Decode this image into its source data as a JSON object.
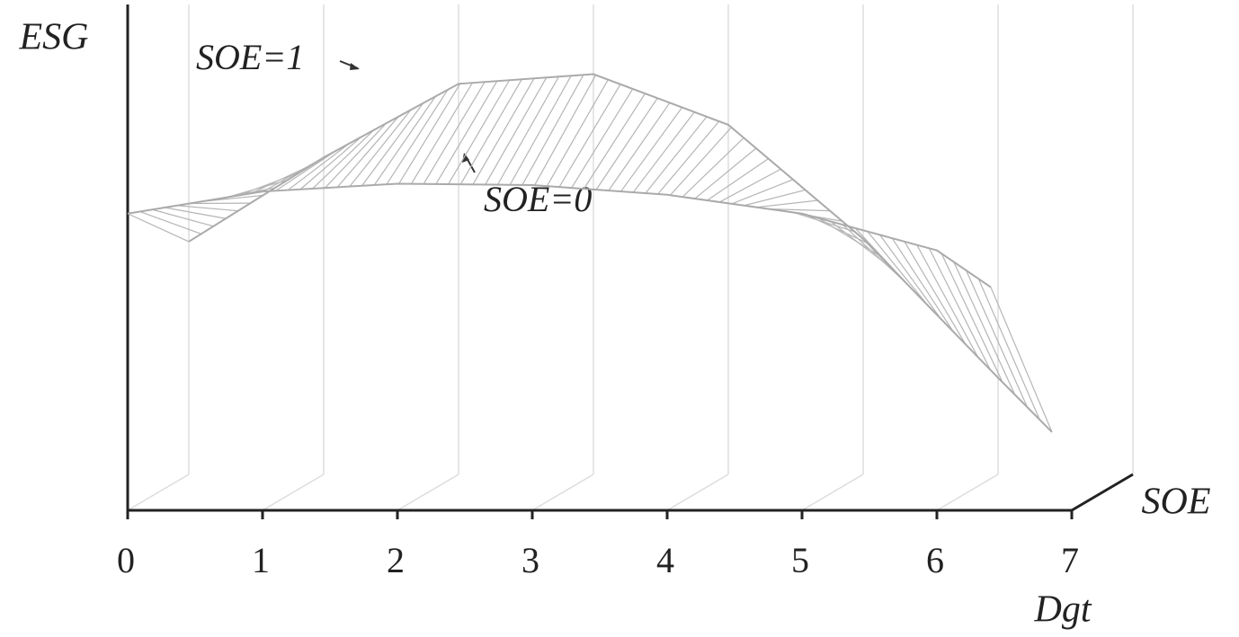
{
  "chart_data": {
    "type": "surface3d",
    "y_label": "ESG",
    "x_label": "Dgt",
    "z_label": "SOE",
    "annotations": [
      "SOE=1",
      "SOE=0"
    ],
    "x": [
      0,
      1,
      2,
      3,
      4,
      5,
      6,
      6.4
    ],
    "series": [
      {
        "name": "SOE=0",
        "z": 0,
        "color": "#aaaaaa",
        "values": [
          6.45,
          6.93,
          7.1,
          7.07,
          6.86,
          6.45,
          5.65,
          4.85
        ]
      },
      {
        "name": "SOE=1",
        "z": 1,
        "color": "#aaaaaa",
        "values": [
          5.06,
          6.89,
          8.49,
          8.7,
          7.6,
          5.12,
          2.1,
          0.92
        ]
      }
    ],
    "xlim": [
      0,
      7
    ],
    "xticks": [
      0,
      1,
      2,
      3,
      4,
      5,
      6,
      7
    ],
    "ylim": [
      0,
      10
    ],
    "zlim": [
      0,
      1
    ],
    "grid": true
  }
}
